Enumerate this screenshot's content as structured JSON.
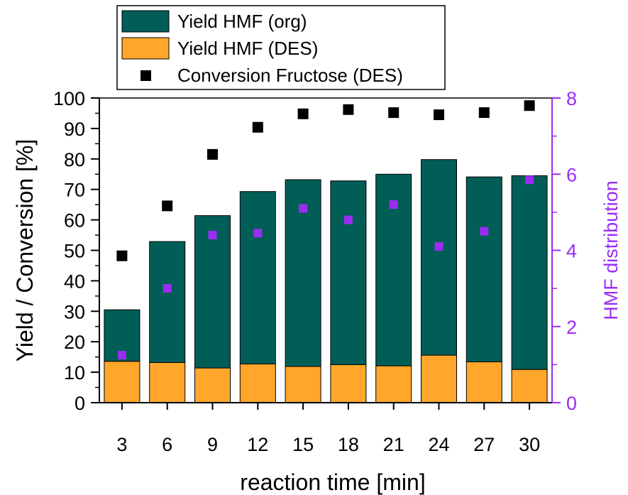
{
  "chart_data": {
    "type": "bar",
    "xlabel": "reaction time [min]",
    "ylabel": "Yield / Conversion [%]",
    "y2label": "HMF distribution",
    "categories": [
      "3",
      "6",
      "9",
      "12",
      "15",
      "18",
      "21",
      "24",
      "27",
      "30"
    ],
    "ylim": [
      0,
      100
    ],
    "yticks": [
      "0",
      "10",
      "20",
      "30",
      "40",
      "50",
      "60",
      "70",
      "80",
      "90",
      "100"
    ],
    "y2lim": [
      0,
      8
    ],
    "y2ticks": [
      "0",
      "2",
      "4",
      "6",
      "8"
    ],
    "grid": false,
    "legend": "top-left",
    "stacked": true,
    "series": [
      {
        "name": "Yield HMF (DES)",
        "kind": "bar",
        "axis": "left",
        "color": "#ffa62b",
        "values": [
          13.6,
          13.2,
          11.4,
          12.7,
          11.9,
          12.5,
          12.1,
          15.6,
          13.4,
          10.9
        ]
      },
      {
        "name": "Yield HMF (org)",
        "kind": "bar",
        "axis": "left",
        "color": "#005e57",
        "values": [
          16.9,
          39.7,
          50.0,
          56.6,
          61.3,
          60.3,
          62.9,
          64.2,
          60.7,
          63.6
        ]
      },
      {
        "name": "Conversion Fructose (DES)",
        "kind": "scatter",
        "axis": "left",
        "color": "#000000",
        "values": [
          48.2,
          64.6,
          81.5,
          90.4,
          94.8,
          96.2,
          95.2,
          94.5,
          95.2,
          97.5
        ]
      },
      {
        "name": "",
        "kind": "scatter",
        "axis": "right",
        "color": "#9b2cf2",
        "values": [
          1.25,
          3.0,
          4.4,
          4.45,
          5.1,
          4.8,
          5.2,
          4.1,
          4.5,
          5.85
        ]
      }
    ],
    "legend_order": [
      1,
      0,
      2
    ]
  }
}
